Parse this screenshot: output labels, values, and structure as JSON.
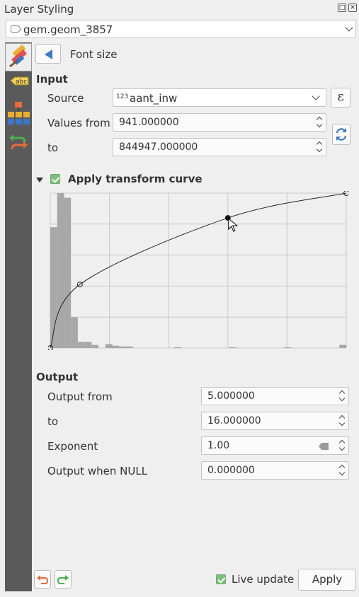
{
  "window": {
    "title": "Layer Styling"
  },
  "layer_select": {
    "value": "gem.geom_3857"
  },
  "panel": {
    "breadcrumb": "Font size"
  },
  "input": {
    "heading": "Input",
    "source_label": "Source",
    "source_type_tag": "123",
    "source_value": "aant_inw",
    "values_from_label": "Values from",
    "values_from": "941.000000",
    "to_label": "to",
    "to": "844947.000000",
    "expression_button": "ε"
  },
  "curve": {
    "label": "Apply transform curve",
    "checked": true,
    "control_points": [
      [
        0,
        0
      ],
      [
        0.1,
        0.41
      ],
      [
        0.6,
        0.84
      ],
      [
        1,
        1
      ]
    ],
    "histogram": [
      0.78,
      1.0,
      0.97,
      0.2,
      0.04,
      0.04,
      0.02,
      0.0,
      0.025,
      0.015,
      0.01,
      0.01,
      0.0,
      0.0,
      0.0,
      0.0,
      0.0,
      0.0,
      0.005,
      0.0,
      0.0,
      0.0,
      0.0,
      0.0,
      0.0,
      0.0,
      0.005,
      0.0,
      0.0,
      0.0,
      0.0,
      0.0,
      0.0,
      0.0,
      0.005,
      0.0,
      0.0,
      0.0,
      0.0,
      0.0,
      0.0,
      0.0,
      0.02
    ]
  },
  "output": {
    "heading": "Output",
    "from_label": "Output from",
    "from": "5.000000",
    "to_label": "to",
    "to": "16.000000",
    "exponent_label": "Exponent",
    "exponent": "1.00",
    "null_label": "Output when NULL",
    "null_value": "0.000000"
  },
  "footer": {
    "live_update_label": "Live update",
    "live_update": true,
    "apply_label": "Apply"
  },
  "colors": {
    "accent": "#3b78c7",
    "sidebar": "#5a5a5a",
    "check": "#7fbf7f",
    "histogram": "#a8a8a8"
  },
  "icons": {
    "float": "float-icon",
    "close": "close-icon",
    "layer": "vector-layer-icon",
    "sidebar": [
      "symbology-brush-icon",
      "labels-abc-icon",
      "diagram-icon",
      "history-icon"
    ],
    "undo": "undo-icon",
    "redo": "redo-icon",
    "refresh": "refresh-icon"
  }
}
